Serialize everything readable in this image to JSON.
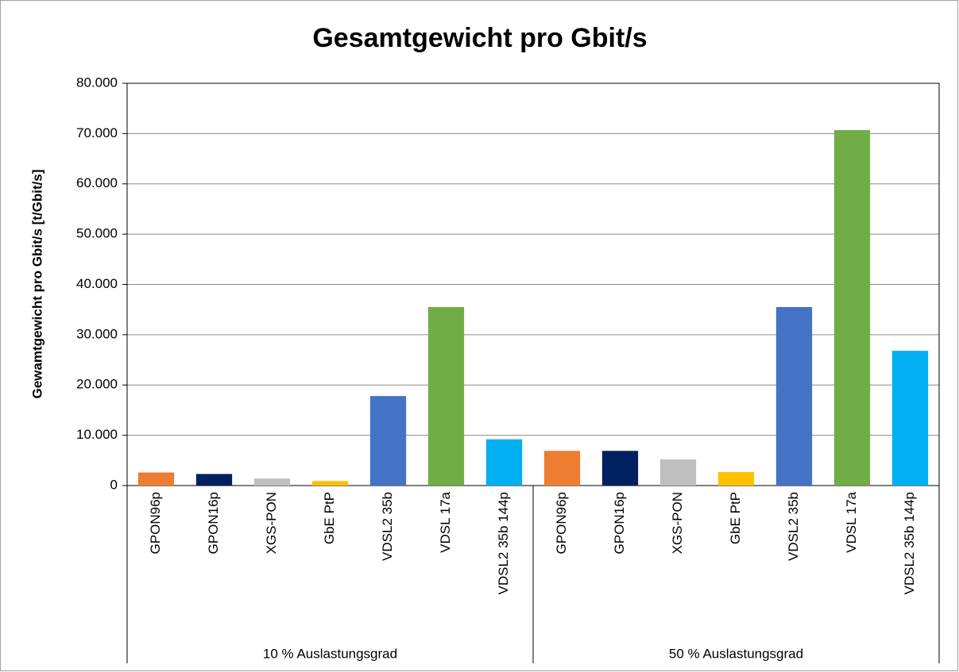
{
  "chart_data": {
    "type": "bar",
    "title": "Gesamtgewicht pro Gbit/s",
    "y_label": "Gewamtgewicht pro Gbit/s [t/Gbit/s]",
    "colors": [
      "#ED7D31",
      "#002060",
      "#BFBFBF",
      "#FFC000",
      "#4472C4",
      "#70AD47",
      "#00B0F0"
    ],
    "groups": [
      {
        "name": "10 % Auslastungsgrad",
        "categories": [
          "GPON96p",
          "GPON16p",
          "XGS-PON",
          "GbE PtP",
          "VDSL2 35b",
          "VDSL 17a",
          "VDSL2 35b 144p"
        ],
        "values": [
          2600,
          2300,
          1400,
          900,
          17800,
          35500,
          9200
        ]
      },
      {
        "name": "50 % Auslastungsgrad",
        "categories": [
          "GPON96p",
          "GPON16p",
          "XGS-PON",
          "GbE PtP",
          "VDSL2 35b",
          "VDSL 17a",
          "VDSL2 35b 144p"
        ],
        "values": [
          6900,
          6900,
          5200,
          2700,
          35500,
          70700,
          26800
        ]
      }
    ],
    "ylim": [
      0,
      80000
    ],
    "yticks": [
      0,
      {
        "value": 10000,
        "label": "10.000"
      },
      {
        "value": 20000,
        "label": "20.000"
      },
      {
        "value": 30000,
        "label": "30.000"
      },
      {
        "value": 40000,
        "label": "40.000"
      },
      {
        "value": 50000,
        "label": "50.000"
      },
      {
        "value": 60000,
        "label": "60.000"
      },
      {
        "value": 70000,
        "label": "70.000"
      },
      {
        "value": 80000,
        "label": "80.000"
      }
    ],
    "grid": true
  }
}
